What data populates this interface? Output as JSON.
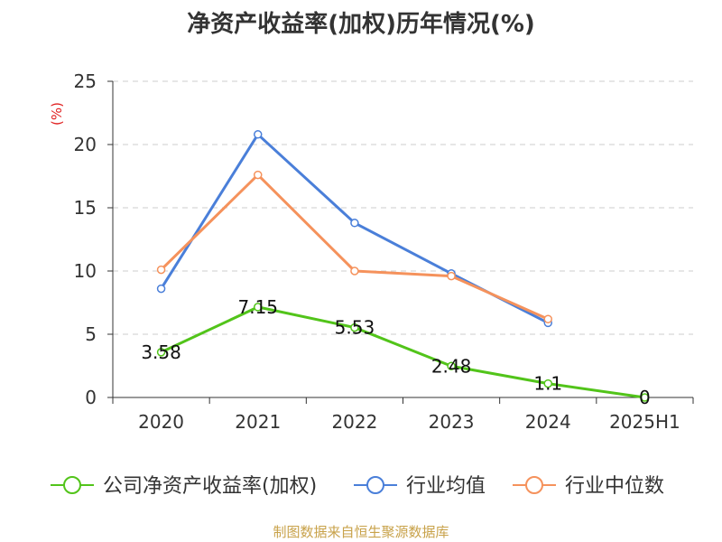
{
  "chart_data": {
    "type": "line",
    "title": "净资产收益率(加权)历年情况(%)",
    "ylabel": "(%)",
    "categories": [
      "2020",
      "2021",
      "2022",
      "2023",
      "2024",
      "2025H1"
    ],
    "ylim": [
      0,
      25
    ],
    "yticks": [
      0,
      5,
      10,
      15,
      20,
      25
    ],
    "grid": true,
    "legend_position": "bottom",
    "series": [
      {
        "name": "公司净资产收益率(加权)",
        "color": "#52c41a",
        "values": [
          3.58,
          7.15,
          5.53,
          2.48,
          1.1,
          0
        ],
        "labels": [
          "3.58",
          "7.15",
          "5.53",
          "2.48",
          "1.1",
          "0"
        ]
      },
      {
        "name": "行业均值",
        "color": "#4a7fd9",
        "values": [
          8.6,
          20.8,
          13.8,
          9.8,
          5.9,
          null
        ]
      },
      {
        "name": "行业中位数",
        "color": "#f5925c",
        "values": [
          10.1,
          17.6,
          10.0,
          9.6,
          6.2,
          null
        ]
      }
    ]
  },
  "footer": {
    "text": "制图数据来自恒生聚源数据库",
    "color": "#c8a24a"
  },
  "colors": {
    "axis": "#333333",
    "grid": "#cccccc",
    "ylabel": "#e02020"
  }
}
